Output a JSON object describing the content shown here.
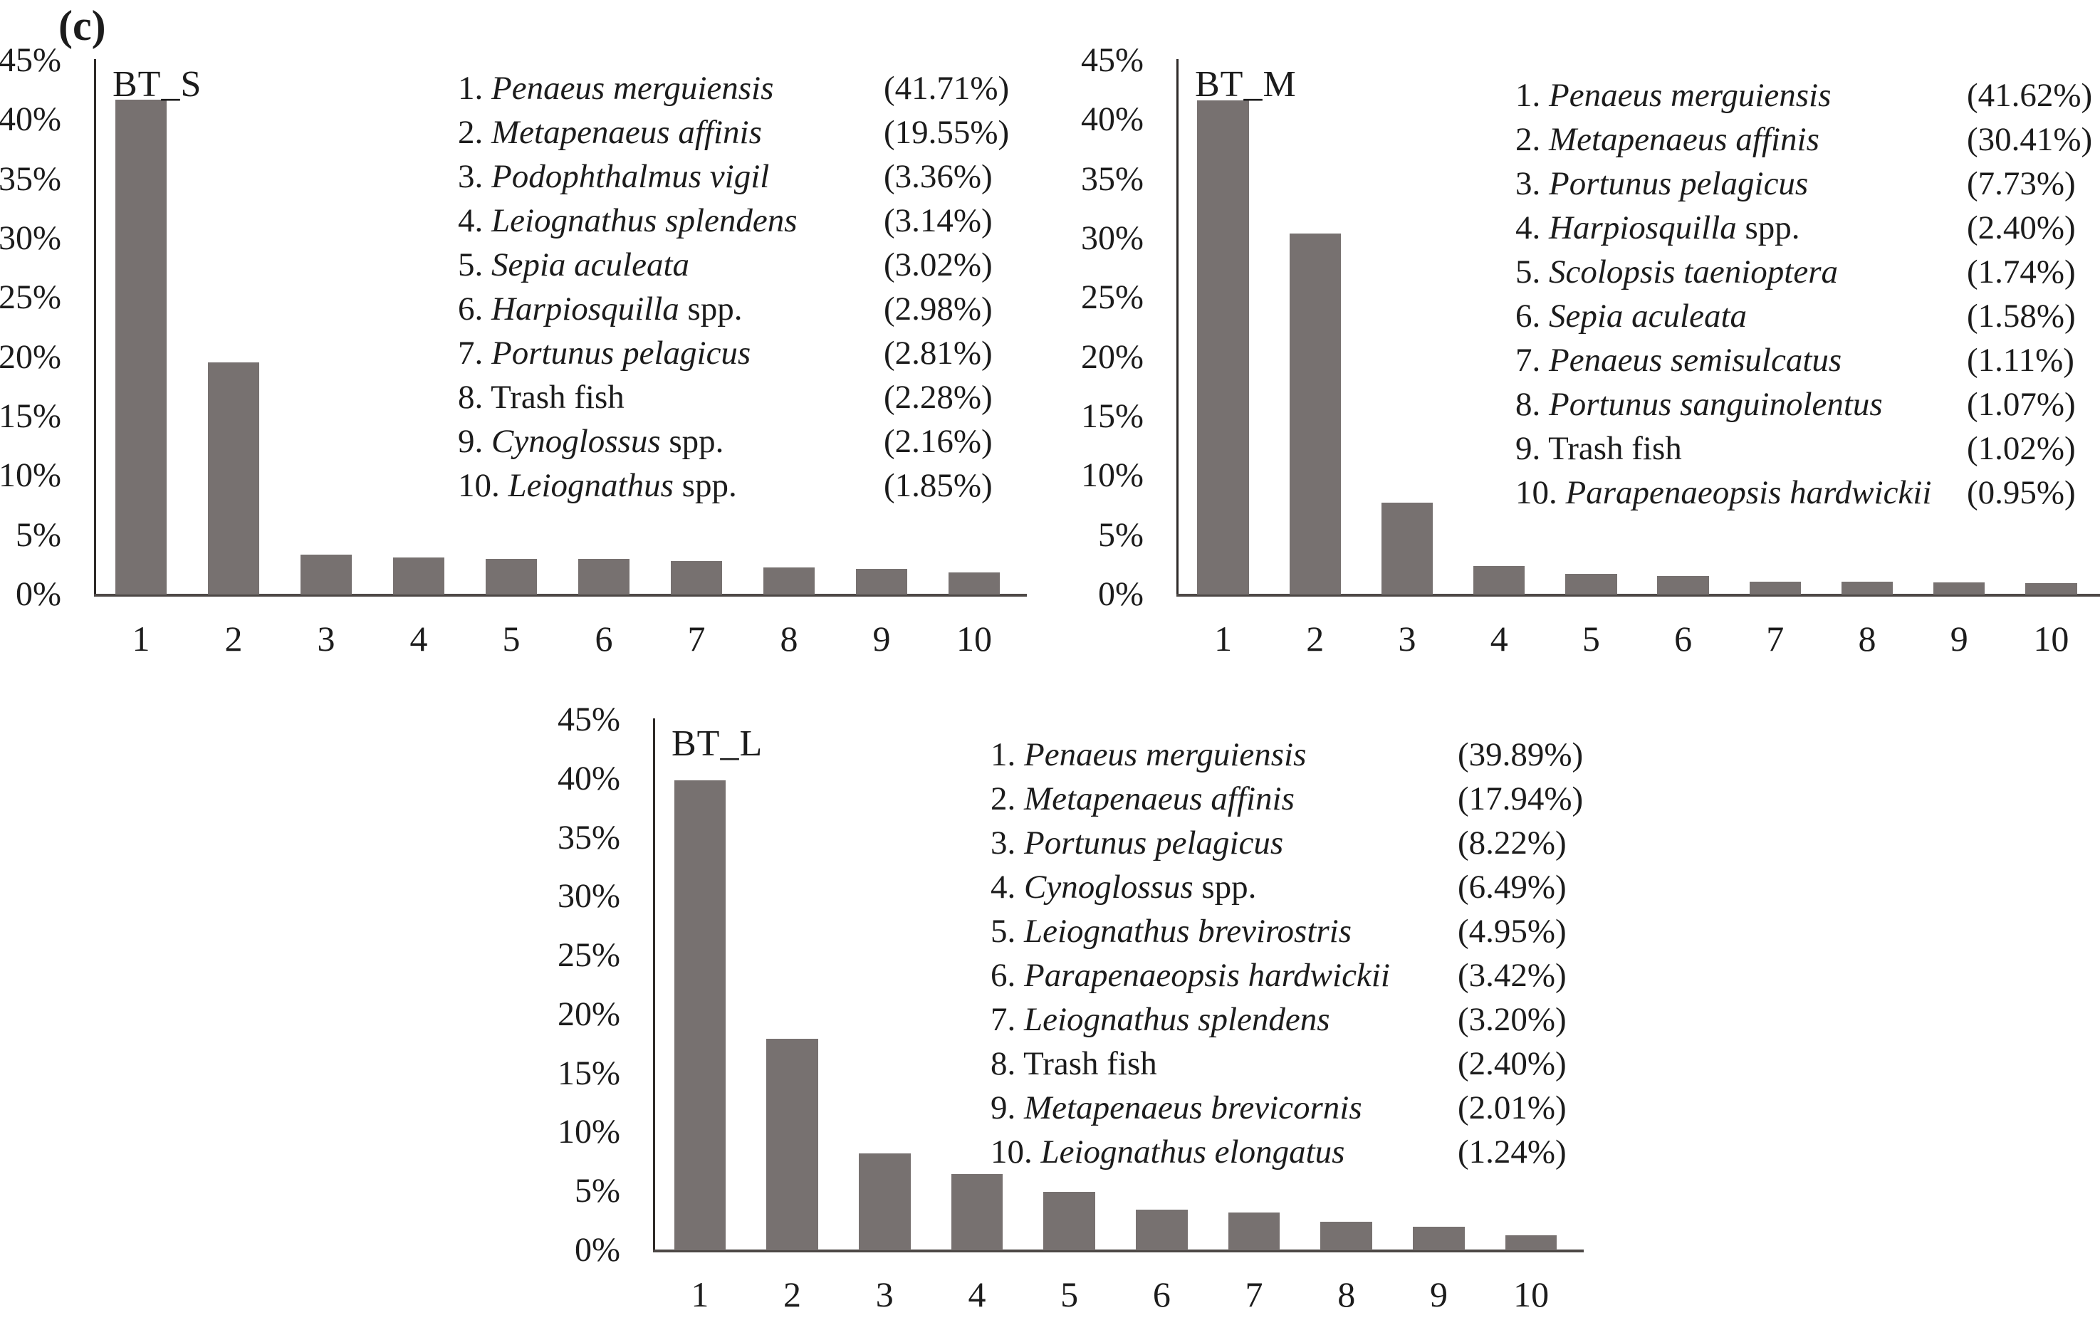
{
  "panel_label": "(c)",
  "style": {
    "bar_color": "#777170",
    "axis_color": "#2e2a28",
    "baseline_color": "#4d4846",
    "text_color": "#1c1c1c",
    "background": "#ffffff"
  },
  "chart_data": [
    {
      "type": "bar",
      "title": "BT_S",
      "xlabel": "",
      "ylabel": "",
      "ylim": [
        0,
        45
      ],
      "grid": false,
      "legend_position": "top-right-inside",
      "y_ticks": [
        "45%",
        "40%",
        "35%",
        "30%",
        "25%",
        "20%",
        "15%",
        "10%",
        "5%",
        "0%"
      ],
      "categories": [
        "1",
        "2",
        "3",
        "4",
        "5",
        "6",
        "7",
        "8",
        "9",
        "10"
      ],
      "values": [
        41.71,
        19.55,
        3.36,
        3.14,
        3.02,
        2.98,
        2.81,
        2.28,
        2.16,
        1.85
      ],
      "legend": [
        {
          "rank": "1.",
          "italic": "Penaeus merguiensis",
          "roman": "",
          "pct": "(41.71%)"
        },
        {
          "rank": "2.",
          "italic": "Metapenaeus affinis",
          "roman": "",
          "pct": "(19.55%)"
        },
        {
          "rank": "3.",
          "italic": "Podophthalmus vigil",
          "roman": "",
          "pct": "(3.36%)"
        },
        {
          "rank": "4.",
          "italic": "Leiognathus splendens",
          "roman": "",
          "pct": "(3.14%)"
        },
        {
          "rank": "5.",
          "italic": "Sepia aculeata",
          "roman": "",
          "pct": "(3.02%)"
        },
        {
          "rank": "6.",
          "italic": "Harpiosquilla",
          "roman": " spp.",
          "pct": "(2.98%)"
        },
        {
          "rank": "7.",
          "italic": "Portunus pelagicus",
          "roman": "",
          "pct": "(2.81%)"
        },
        {
          "rank": "8.",
          "italic": "",
          "roman": "Trash fish",
          "pct": "(2.28%)"
        },
        {
          "rank": "9.",
          "italic": "Cynoglossus",
          "roman": " spp.",
          "pct": "(2.16%)"
        },
        {
          "rank": "10.",
          "italic": "Leiognathus",
          "roman": " spp.",
          "pct": "(1.85%)"
        }
      ]
    },
    {
      "type": "bar",
      "title": "BT_M",
      "xlabel": "",
      "ylabel": "",
      "ylim": [
        0,
        45
      ],
      "grid": false,
      "legend_position": "top-right-inside",
      "y_ticks": [
        "45%",
        "40%",
        "35%",
        "30%",
        "25%",
        "20%",
        "15%",
        "10%",
        "5%",
        "0%"
      ],
      "categories": [
        "1",
        "2",
        "3",
        "4",
        "5",
        "6",
        "7",
        "8",
        "9",
        "10"
      ],
      "values": [
        41.62,
        30.41,
        7.73,
        2.4,
        1.74,
        1.58,
        1.11,
        1.07,
        1.02,
        0.95
      ],
      "legend": [
        {
          "rank": "1.",
          "italic": "Penaeus merguiensis",
          "roman": "",
          "pct": "(41.62%)"
        },
        {
          "rank": "2.",
          "italic": "Metapenaeus affinis",
          "roman": "",
          "pct": "(30.41%)"
        },
        {
          "rank": "3.",
          "italic": "Portunus pelagicus",
          "roman": "",
          "pct": "(7.73%)"
        },
        {
          "rank": "4.",
          "italic": "Harpiosquilla",
          "roman": " spp.",
          "pct": "(2.40%)"
        },
        {
          "rank": "5.",
          "italic": "Scolopsis taenioptera",
          "roman": "",
          "pct": "(1.74%)"
        },
        {
          "rank": "6.",
          "italic": "Sepia aculeata",
          "roman": "",
          "pct": "(1.58%)"
        },
        {
          "rank": "7.",
          "italic": "Penaeus semisulcatus",
          "roman": "",
          "pct": "(1.11%)"
        },
        {
          "rank": "8.",
          "italic": "Portunus sanguinolentus",
          "roman": "",
          "pct": "(1.07%)"
        },
        {
          "rank": "9.",
          "italic": "",
          "roman": "Trash fish",
          "pct": "(1.02%)"
        },
        {
          "rank": "10.",
          "italic": "Parapenaeopsis hardwickii",
          "roman": "",
          "pct": "(0.95%)"
        }
      ]
    },
    {
      "type": "bar",
      "title": "BT_L",
      "xlabel": "",
      "ylabel": "",
      "ylim": [
        0,
        45
      ],
      "grid": false,
      "legend_position": "top-right-inside",
      "y_ticks": [
        "45%",
        "40%",
        "35%",
        "30%",
        "25%",
        "20%",
        "15%",
        "10%",
        "5%",
        "0%"
      ],
      "categories": [
        "1",
        "2",
        "3",
        "4",
        "5",
        "6",
        "7",
        "8",
        "9",
        "10"
      ],
      "values": [
        39.89,
        17.94,
        8.22,
        6.49,
        4.95,
        3.42,
        3.2,
        2.4,
        2.01,
        1.24
      ],
      "legend": [
        {
          "rank": "1.",
          "italic": "Penaeus merguiensis",
          "roman": "",
          "pct": "(39.89%)"
        },
        {
          "rank": "2.",
          "italic": "Metapenaeus affinis",
          "roman": "",
          "pct": "(17.94%)"
        },
        {
          "rank": "3.",
          "italic": "Portunus pelagicus",
          "roman": "",
          "pct": "(8.22%)"
        },
        {
          "rank": "4.",
          "italic": "Cynoglossus",
          "roman": " spp.",
          "pct": "(6.49%)"
        },
        {
          "rank": "5.",
          "italic": "Leiognathus brevirostris",
          "roman": "",
          "pct": "(4.95%)"
        },
        {
          "rank": "6.",
          "italic": "Parapenaeopsis hardwickii",
          "roman": "",
          "pct": "(3.42%)"
        },
        {
          "rank": "7.",
          "italic": "Leiognathus splendens",
          "roman": "",
          "pct": "(3.20%)"
        },
        {
          "rank": "8.",
          "italic": "",
          "roman": "Trash fish",
          "pct": "(2.40%)"
        },
        {
          "rank": "9.",
          "italic": "Metapenaeus brevicornis",
          "roman": "",
          "pct": "(2.01%)"
        },
        {
          "rank": "10.",
          "italic": "Leiognathus elongatus",
          "roman": "",
          "pct": "(1.24%)"
        }
      ]
    }
  ]
}
